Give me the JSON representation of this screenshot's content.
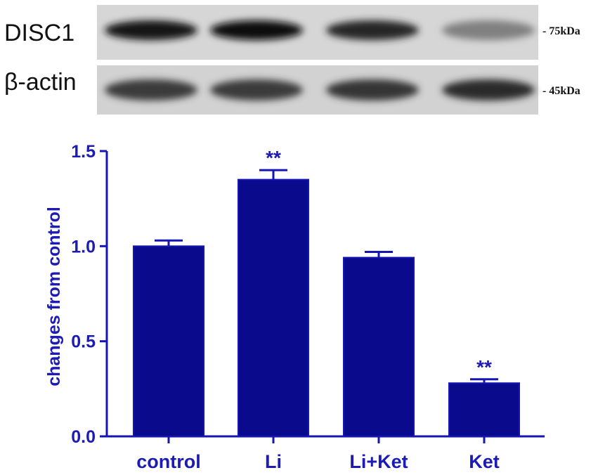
{
  "blot": {
    "rows": [
      {
        "label": "DISC1",
        "marker": "- 75kDa",
        "intensities": [
          0.92,
          1.0,
          0.85,
          0.38
        ]
      },
      {
        "label": "β-actin",
        "marker": "- 45kDa",
        "intensities": [
          0.75,
          0.75,
          0.78,
          0.82
        ]
      }
    ]
  },
  "chart_data": {
    "type": "bar",
    "categories": [
      "control",
      "Li",
      "Li+Ket",
      "Ket"
    ],
    "values": [
      1.0,
      1.35,
      0.94,
      0.28
    ],
    "errors": [
      0.03,
      0.05,
      0.03,
      0.02
    ],
    "annotations": [
      "",
      "**",
      "",
      "**"
    ],
    "xlabel": "",
    "ylabel": "changes from control",
    "ylim": [
      0.0,
      1.5
    ],
    "yticks": [
      "0.0",
      "0.5",
      "1.0",
      "1.5"
    ],
    "grid": false,
    "colors": {
      "bar": "#0a0a8c",
      "axis": "#1616b4",
      "text": "#1c1cb4"
    }
  }
}
